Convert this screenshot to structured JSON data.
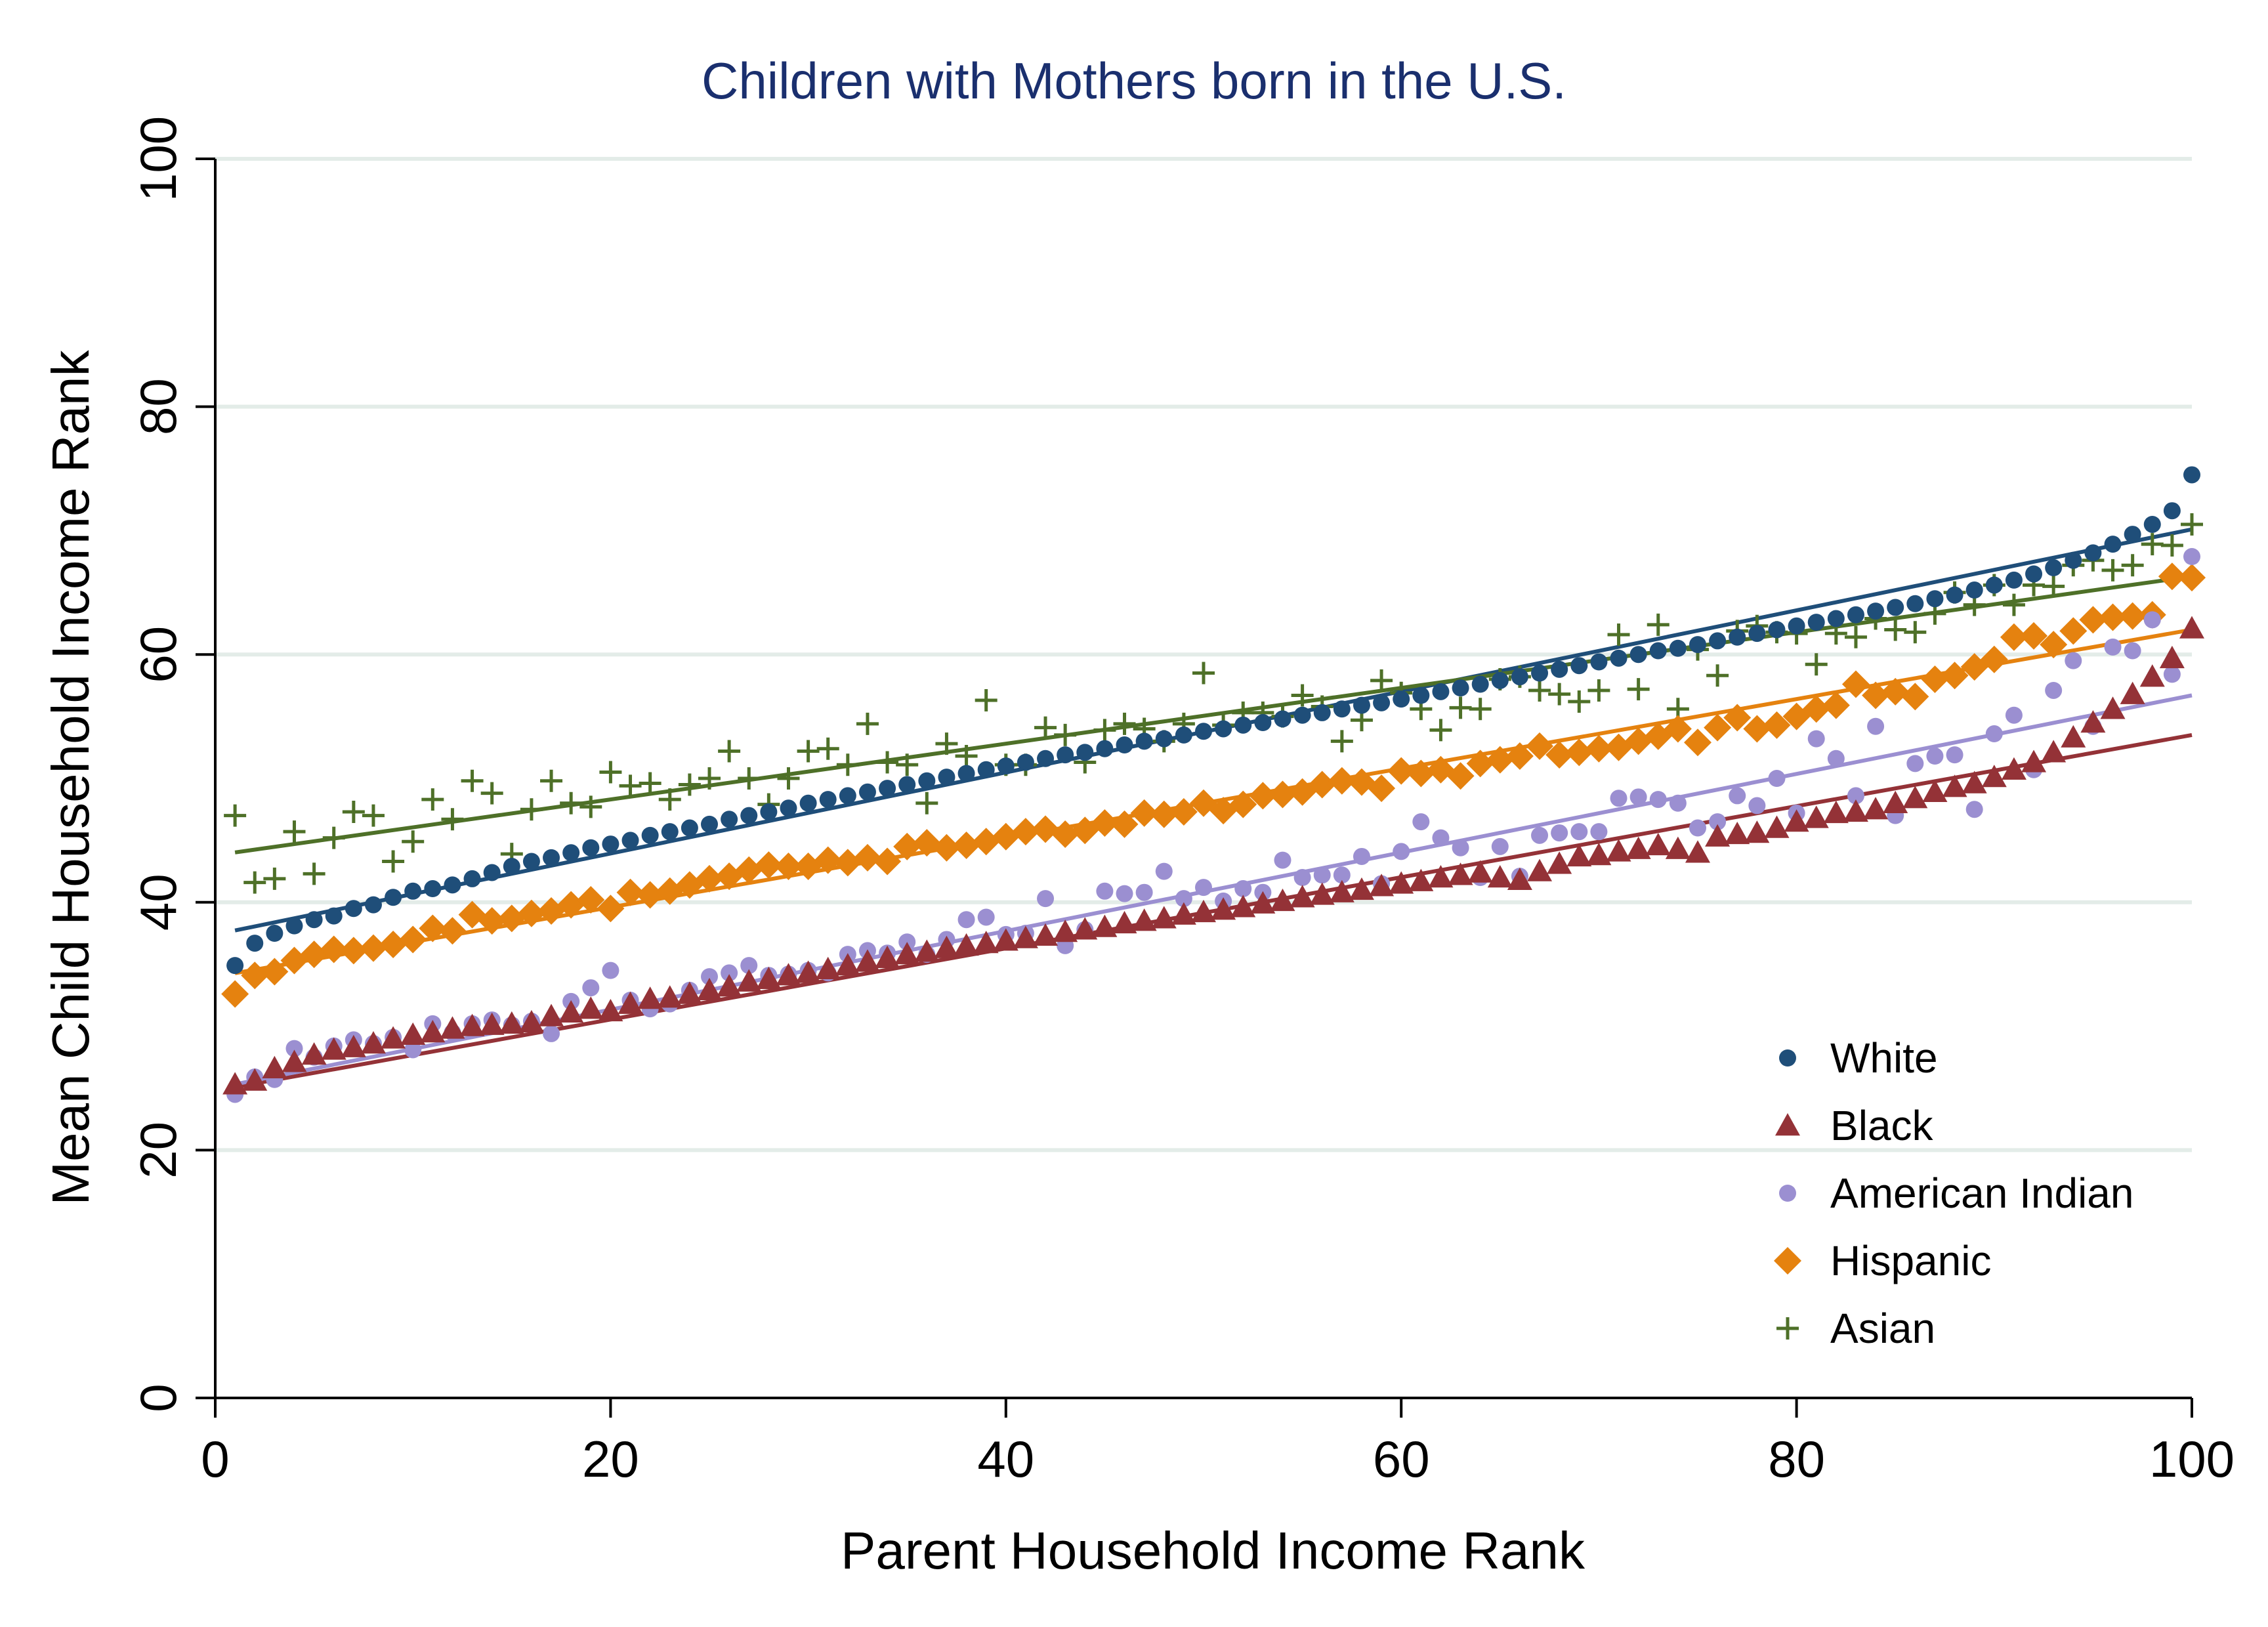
{
  "chart_data": {
    "type": "scatter",
    "title": "Children with Mothers born in the U.S.",
    "xlabel": "Parent Household Income Rank",
    "ylabel": "Mean Child Household Income Rank",
    "xlim": [
      0,
      100
    ],
    "ylim": [
      0,
      100
    ],
    "xticks": [
      "0",
      "20",
      "40",
      "60",
      "80",
      "100"
    ],
    "yticks": [
      "0",
      "20",
      "40",
      "60",
      "80",
      "100"
    ],
    "grid": "horizontal",
    "legend_position": "bottom-right",
    "series": [
      {
        "name": "White",
        "color": "#1f4e79",
        "marker": "circle",
        "fit": [
          37.4,
          0.327
        ],
        "values": [
          34.9,
          36.7,
          37.5,
          38.1,
          38.6,
          38.9,
          39.5,
          39.8,
          40.4,
          40.9,
          41.1,
          41.4,
          41.9,
          42.4,
          42.9,
          43.3,
          43.6,
          44.0,
          44.4,
          44.7,
          45.0,
          45.4,
          45.7,
          46.0,
          46.3,
          46.7,
          47.0,
          47.3,
          47.6,
          48.0,
          48.3,
          48.6,
          48.9,
          49.2,
          49.5,
          49.8,
          50.1,
          50.4,
          50.7,
          51.0,
          51.3,
          51.6,
          51.9,
          52.1,
          52.4,
          52.7,
          53.0,
          53.2,
          53.5,
          53.8,
          54.0,
          54.3,
          54.5,
          54.8,
          55.1,
          55.3,
          55.6,
          55.9,
          56.1,
          56.4,
          56.7,
          57.0,
          57.3,
          57.6,
          57.9,
          58.2,
          58.5,
          58.8,
          59.1,
          59.4,
          59.7,
          60.0,
          60.3,
          60.5,
          60.8,
          61.1,
          61.4,
          61.7,
          62.0,
          62.3,
          62.6,
          62.9,
          63.2,
          63.5,
          63.8,
          64.1,
          64.5,
          64.8,
          65.2,
          65.6,
          66.0,
          66.5,
          67.0,
          67.6,
          68.2,
          68.9,
          69.7,
          70.5,
          71.6,
          74.5
        ]
      },
      {
        "name": "Black",
        "color": "#943237",
        "marker": "triangle",
        "fit": [
          24.8,
          0.287
        ],
        "values": [
          25.3,
          25.6,
          26.6,
          27.1,
          27.7,
          28.1,
          28.3,
          28.6,
          29.0,
          29.3,
          29.5,
          29.8,
          30.0,
          30.1,
          30.2,
          30.3,
          30.8,
          31.1,
          31.4,
          31.2,
          31.8,
          32.2,
          32.3,
          32.6,
          32.9,
          33.2,
          33.6,
          33.8,
          34.1,
          34.3,
          34.6,
          34.9,
          35.2,
          35.5,
          35.8,
          36.0,
          36.3,
          36.5,
          36.7,
          36.9,
          37.1,
          37.3,
          37.6,
          37.8,
          38.0,
          38.3,
          38.5,
          38.7,
          39.0,
          39.2,
          39.4,
          39.6,
          39.9,
          40.1,
          40.4,
          40.6,
          40.8,
          41.0,
          41.3,
          41.5,
          41.7,
          42.0,
          42.2,
          42.4,
          42.0,
          41.8,
          42.5,
          43.1,
          43.7,
          43.8,
          44.1,
          44.3,
          44.6,
          44.3,
          44.0,
          45.3,
          45.5,
          45.6,
          46.0,
          46.5,
          46.8,
          47.2,
          47.3,
          47.5,
          48.0,
          48.4,
          48.9,
          49.3,
          49.6,
          50.1,
          50.7,
          51.3,
          52.1,
          53.3,
          54.5,
          55.6,
          56.8,
          58.2,
          59.7,
          62.1
        ]
      },
      {
        "name": "American Indian",
        "color": "#9b8fd1",
        "marker": "circle",
        "fit": [
          25.0,
          0.317
        ],
        "values": [
          24.5,
          25.9,
          25.7,
          28.2,
          27.5,
          28.4,
          28.9,
          28.6,
          29.1,
          28.1,
          30.2,
          29.5,
          30.2,
          30.5,
          30.1,
          30.4,
          29.4,
          32.0,
          33.1,
          34.5,
          32.1,
          31.4,
          31.8,
          32.9,
          34.0,
          34.3,
          34.9,
          34.1,
          34.2,
          34.5,
          34.3,
          35.8,
          36.1,
          35.9,
          36.8,
          35.8,
          37.0,
          38.6,
          38.8,
          37.4,
          37.5,
          40.3,
          36.5,
          37.8,
          40.9,
          40.7,
          40.8,
          42.5,
          40.3,
          41.2,
          40.1,
          41.1,
          40.8,
          43.4,
          42.0,
          42.2,
          42.2,
          43.7,
          41.5,
          44.1,
          46.5,
          45.2,
          44.4,
          42.0,
          44.5,
          42.1,
          45.4,
          45.6,
          45.7,
          45.7,
          48.4,
          48.5,
          48.3,
          48.0,
          46.0,
          46.5,
          48.6,
          47.8,
          50.0,
          47.2,
          53.2,
          51.6,
          48.6,
          54.2,
          47.0,
          51.2,
          51.8,
          51.9,
          47.5,
          53.6,
          55.1,
          50.7,
          57.1,
          59.5,
          54.2,
          60.6,
          60.3,
          62.8,
          58.4,
          67.9
        ]
      },
      {
        "name": "Hispanic",
        "color": "#e5820f",
        "marker": "diamond",
        "fit": [
          34.0,
          0.28
        ],
        "values": [
          32.6,
          34.1,
          34.4,
          35.3,
          35.8,
          36.2,
          36.1,
          36.3,
          36.6,
          37.0,
          37.9,
          37.7,
          39.0,
          38.5,
          38.7,
          39.1,
          39.3,
          39.8,
          40.2,
          39.5,
          40.8,
          40.6,
          40.9,
          41.4,
          41.9,
          42.1,
          42.6,
          43.0,
          42.9,
          42.9,
          43.4,
          43.2,
          43.6,
          43.3,
          44.5,
          44.8,
          44.4,
          44.6,
          44.9,
          45.3,
          45.7,
          45.9,
          45.5,
          45.8,
          46.4,
          46.3,
          47.2,
          47.1,
          47.3,
          48.0,
          47.4,
          47.9,
          48.6,
          48.7,
          48.9,
          49.5,
          49.8,
          49.7,
          49.2,
          50.6,
          50.4,
          50.7,
          50.2,
          51.2,
          51.5,
          51.8,
          52.6,
          51.9,
          52.1,
          52.4,
          52.5,
          53.0,
          53.4,
          54.0,
          52.9,
          54.1,
          54.9,
          54.0,
          54.3,
          55.0,
          55.6,
          55.9,
          57.6,
          56.7,
          57.0,
          56.6,
          58.0,
          58.3,
          59.0,
          59.6,
          61.4,
          61.5,
          60.8,
          61.9,
          62.8,
          63.0,
          63.1,
          63.2,
          66.3,
          66.2
        ]
      },
      {
        "name": "Asian",
        "color": "#4e7028",
        "marker": "plus",
        "fit": [
          43.8,
          0.225
        ],
        "values": [
          47.0,
          41.6,
          41.9,
          45.7,
          42.3,
          45.2,
          47.3,
          47.0,
          43.3,
          44.9,
          48.3,
          46.7,
          49.8,
          48.8,
          43.9,
          47.5,
          49.8,
          48.0,
          47.7,
          50.5,
          49.4,
          49.6,
          48.3,
          49.5,
          50.0,
          52.2,
          50.0,
          47.9,
          50.0,
          52.2,
          52.4,
          51.1,
          54.4,
          51.3,
          51.1,
          48.0,
          52.8,
          51.8,
          56.3,
          51.1,
          51.1,
          54.1,
          53.5,
          51.3,
          53.9,
          54.4,
          54.0,
          53.0,
          54.4,
          58.5,
          54.3,
          55.3,
          55.3,
          55.0,
          56.7,
          55.8,
          53.0,
          54.7,
          57.9,
          56.9,
          55.6,
          53.9,
          55.7,
          55.6,
          58.0,
          58.2,
          57.1,
          56.8,
          56.2,
          57.1,
          61.6,
          57.2,
          62.4,
          55.6,
          60.4,
          58.3,
          61.9,
          62.3,
          61.8,
          61.7,
          59.2,
          61.7,
          61.4,
          62.9,
          62.0,
          61.8,
          63.3,
          65.0,
          64.0,
          65.6,
          64.0,
          65.6,
          65.5,
          67.2,
          67.6,
          66.8,
          67.2,
          68.9,
          68.8,
          70.5
        ]
      }
    ]
  }
}
